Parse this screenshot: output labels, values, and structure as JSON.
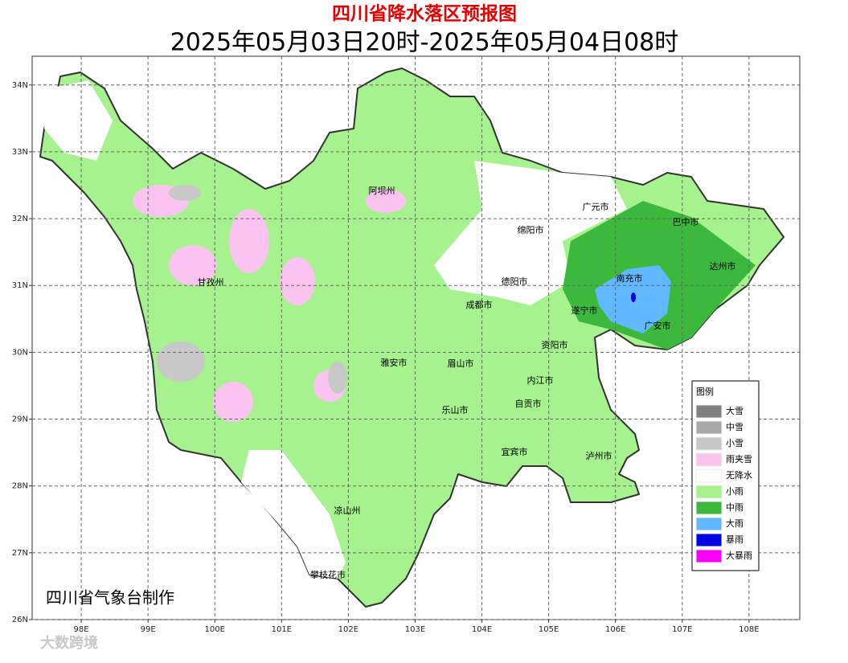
{
  "header": {
    "title": "四川省降水落区预报图",
    "subtitle": "2025年05月03日20时-2025年05月04日08时"
  },
  "chart_data": {
    "type": "map",
    "xlim": [
      97.265,
      108.76
    ],
    "ylim": [
      26,
      34.43
    ],
    "xticks": [
      {
        "value": 98,
        "label": "98E"
      },
      {
        "value": 99,
        "label": "99E"
      },
      {
        "value": 100,
        "label": "100E"
      },
      {
        "value": 101,
        "label": "101E"
      },
      {
        "value": 102,
        "label": "102E"
      },
      {
        "value": 103,
        "label": "103E"
      },
      {
        "value": 104,
        "label": "104E"
      },
      {
        "value": 105,
        "label": "105E"
      },
      {
        "value": 106,
        "label": "106E"
      },
      {
        "value": 107,
        "label": "107E"
      },
      {
        "value": 108,
        "label": "108E"
      }
    ],
    "yticks": [
      {
        "value": 26,
        "label": "26N"
      },
      {
        "value": 27,
        "label": "27N"
      },
      {
        "value": 28,
        "label": "28N"
      },
      {
        "value": 29,
        "label": "29N"
      },
      {
        "value": 30,
        "label": "30N"
      },
      {
        "value": 31,
        "label": "31N"
      },
      {
        "value": 32,
        "label": "32N"
      },
      {
        "value": 33,
        "label": "33N"
      },
      {
        "value": 34,
        "label": "34N"
      }
    ],
    "grid": true,
    "cities": [
      "阿坝州",
      "广元市",
      "巴中市",
      "绵阳市",
      "达州市",
      "甘孜州",
      "德阳市",
      "南充市",
      "成都市",
      "遂宁市",
      "广安市",
      "资阳市",
      "雅安市",
      "眉山市",
      "内江市",
      "自贡市",
      "乐山市",
      "宜宾市",
      "泸州市",
      "凉山州",
      "攀枝花市"
    ]
  },
  "legend": {
    "title": "图例",
    "items": [
      {
        "label": "大雪",
        "color": "#808080"
      },
      {
        "label": "中雪",
        "color": "#a9a9a9"
      },
      {
        "label": "小雪",
        "color": "#c8c8c8"
      },
      {
        "label": "雨夹雪",
        "color": "#fbc3ef"
      },
      {
        "label": "无降水",
        "color": "#ffffff"
      },
      {
        "label": "小雨",
        "color": "#a6f28e"
      },
      {
        "label": "中雨",
        "color": "#3cb93c"
      },
      {
        "label": "大雨",
        "color": "#61b8ff"
      },
      {
        "label": "暴雨",
        "color": "#0000e1"
      },
      {
        "label": "大暴雨",
        "color": "#fa00fa"
      }
    ]
  },
  "footer": "四川省气象台制作",
  "watermark": "大数跨境"
}
